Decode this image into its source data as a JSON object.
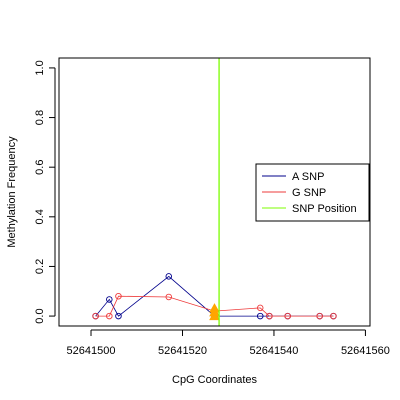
{
  "chart_data": {
    "type": "line",
    "xlabel": "CpG Coordinates",
    "ylabel": "Methylation Frequency",
    "xlim": [
      52641493,
      52641561
    ],
    "ylim": [
      -0.04,
      1.04
    ],
    "x_ticks": [
      52641500,
      52641520,
      52641540,
      52641560
    ],
    "x_tick_labels": [
      "52641500",
      "52641520",
      "52641540",
      "52641560"
    ],
    "y_ticks": [
      0.0,
      0.2,
      0.4,
      0.6,
      0.8,
      1.0
    ],
    "y_tick_labels": [
      "0.0",
      "0.2",
      "0.4",
      "0.6",
      "0.8",
      "1.0"
    ],
    "series": [
      {
        "name": "A SNP",
        "color": "#00008b",
        "x": [
          52641501,
          52641504,
          52641506,
          52641517,
          52641527,
          52641537,
          52641539,
          52641543,
          52641550,
          52641553
        ],
        "y": [
          0.0,
          0.067,
          0.0,
          0.16,
          0.0,
          0.0,
          0.0,
          0.0,
          0.0,
          0.0
        ]
      },
      {
        "name": "G SNP",
        "color": "#ee3b3b",
        "x": [
          52641501,
          52641504,
          52641506,
          52641517,
          52641527,
          52641537,
          52641539,
          52641543,
          52641550,
          52641553
        ],
        "y": [
          0.0,
          0.0,
          0.08,
          0.077,
          0.02,
          0.033,
          0.0,
          0.0,
          0.0,
          0.0
        ]
      }
    ],
    "snp_position": {
      "name": "SNP Position",
      "x": 52641528,
      "color": "#7cfc00"
    },
    "snp_markers": {
      "color": "#ffa500",
      "x": 52641527,
      "y": [
        0.0,
        0.015,
        0.03
      ]
    },
    "legend": {
      "position": "right",
      "entries": [
        {
          "label": "A SNP",
          "color": "#00008b"
        },
        {
          "label": "G SNP",
          "color": "#ee3b3b"
        },
        {
          "label": "SNP Position",
          "color": "#7cfc00"
        }
      ]
    }
  }
}
